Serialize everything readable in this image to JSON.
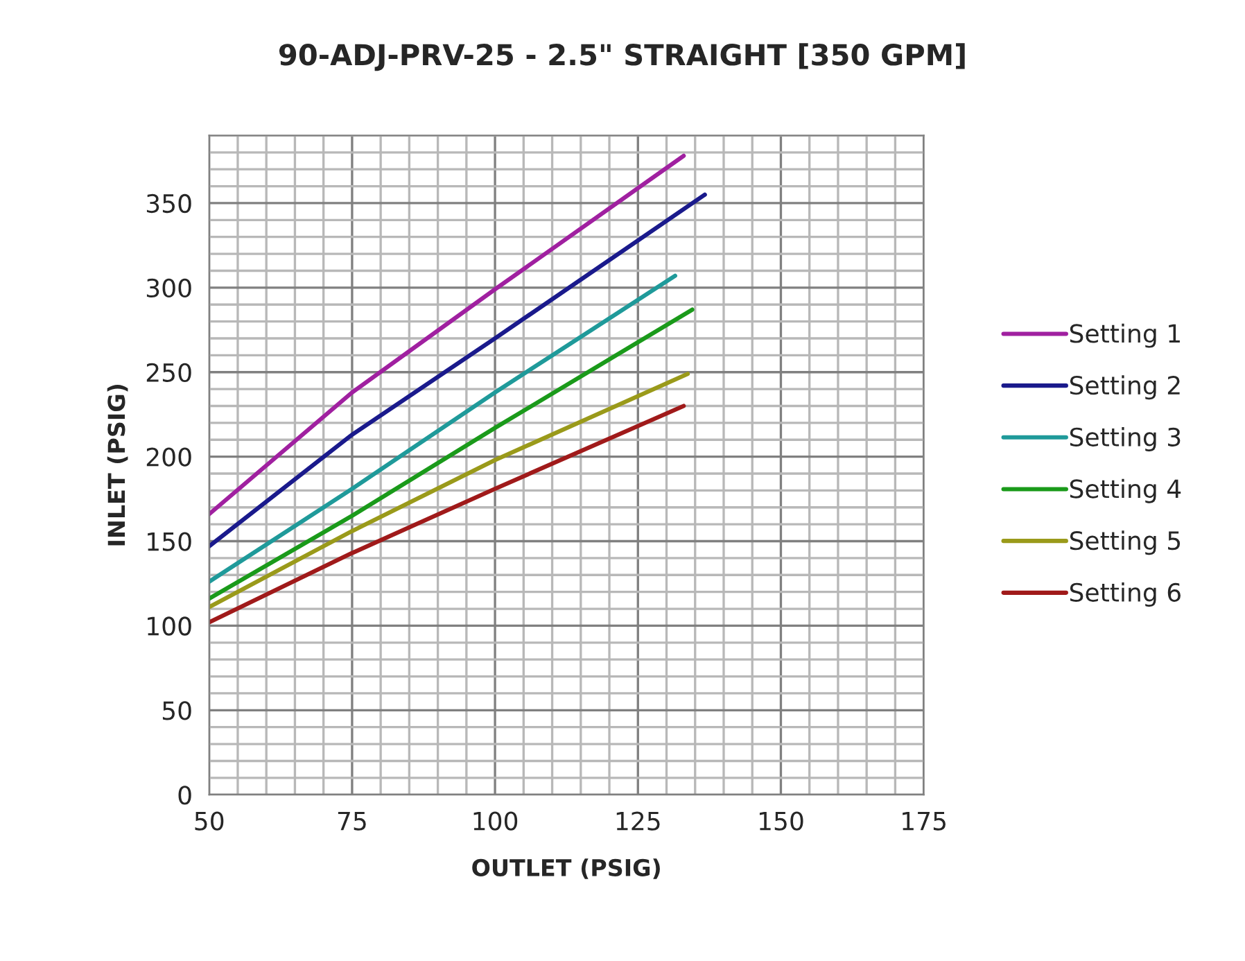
{
  "chart_data": {
    "type": "line",
    "title": "90-ADJ-PRV-25 - 2.5\" STRAIGHT [350 GPM]",
    "xlabel": "OUTLET (PSIG)",
    "ylabel": "INLET (PSIG)",
    "xlim": [
      50,
      175
    ],
    "xticks": [
      50,
      75,
      100,
      125,
      150,
      175
    ],
    "ylim": [
      0,
      390
    ],
    "yticks": [
      0,
      50,
      100,
      150,
      200,
      250,
      300,
      350
    ],
    "grid": true,
    "legend": "right",
    "marker": "none",
    "line_style": "solid",
    "series": [
      {
        "name": "Setting 1",
        "color": "#a020a0",
        "x": [
          50,
          75,
          100,
          133
        ],
        "values": [
          166,
          238,
          299,
          378
        ]
      },
      {
        "name": "Setting 2",
        "color": "#1a1a8c",
        "x": [
          50,
          75,
          100,
          136.7
        ],
        "values": [
          147,
          213,
          270,
          355
        ]
      },
      {
        "name": "Setting 3",
        "color": "#1f9a9a",
        "x": [
          50,
          75,
          100,
          131.5
        ],
        "values": [
          126,
          181,
          238,
          307
        ]
      },
      {
        "name": "Setting 4",
        "color": "#1a9a1a",
        "x": [
          50,
          75,
          100,
          134.5
        ],
        "values": [
          116,
          165,
          217,
          287
        ]
      },
      {
        "name": "Setting 5",
        "color": "#9a9a1a",
        "x": [
          50,
          75,
          100,
          133.7
        ],
        "values": [
          111,
          156,
          198,
          249
        ]
      },
      {
        "name": "Setting 6",
        "color": "#a01a1a",
        "x": [
          50,
          75,
          100,
          133
        ],
        "values": [
          102,
          143,
          181,
          230
        ]
      }
    ]
  }
}
